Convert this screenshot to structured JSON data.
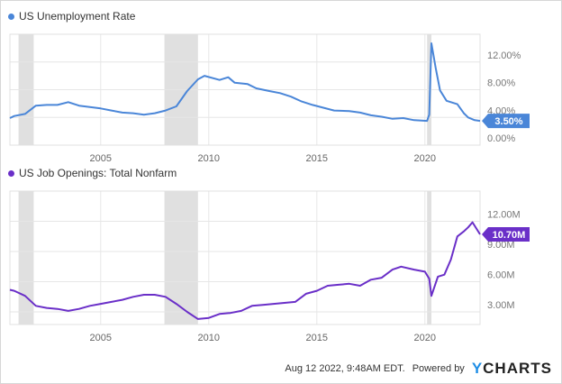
{
  "chart_data": [
    {
      "type": "line",
      "title": "US Unemployment Rate",
      "color": "#4a86d8",
      "xlim": [
        2000.8,
        2022.55
      ],
      "ylim": [
        0,
        16
      ],
      "x_ticks": [
        2005,
        2010,
        2015,
        2020
      ],
      "x_tick_labels": [
        "2005",
        "2010",
        "2015",
        "2020"
      ],
      "y_ticks": [
        0,
        4,
        8,
        12
      ],
      "y_tick_labels": [
        "0.00%",
        "4.00%",
        "8.00%",
        "12.00%"
      ],
      "last_value_label": "3.50%",
      "last_value": 3.5,
      "recessions": [
        [
          2001.2,
          2001.9
        ],
        [
          2007.95,
          2009.5
        ],
        [
          2020.1,
          2020.3
        ]
      ],
      "x": [
        2000.8,
        2001.0,
        2001.5,
        2002.0,
        2002.5,
        2003.0,
        2003.5,
        2004.0,
        2004.5,
        2005.0,
        2005.5,
        2006.0,
        2006.5,
        2007.0,
        2007.5,
        2008.0,
        2008.5,
        2009.0,
        2009.5,
        2009.8,
        2010.5,
        2010.9,
        2011.2,
        2011.8,
        2012.2,
        2012.8,
        2013.3,
        2013.8,
        2014.3,
        2014.8,
        2015.3,
        2015.8,
        2016.5,
        2017.0,
        2017.5,
        2018.0,
        2018.5,
        2019.0,
        2019.5,
        2020.1,
        2020.2,
        2020.3,
        2020.5,
        2020.7,
        2021.0,
        2021.5,
        2021.8,
        2022.0,
        2022.3,
        2022.55
      ],
      "y": [
        3.9,
        4.2,
        4.5,
        5.7,
        5.8,
        5.8,
        6.2,
        5.7,
        5.5,
        5.3,
        5.0,
        4.7,
        4.6,
        4.4,
        4.6,
        5.0,
        5.6,
        7.8,
        9.5,
        10.0,
        9.4,
        9.8,
        9.0,
        8.8,
        8.2,
        7.8,
        7.5,
        7.0,
        6.3,
        5.8,
        5.4,
        5.0,
        4.9,
        4.7,
        4.3,
        4.1,
        3.8,
        3.9,
        3.6,
        3.5,
        4.4,
        14.7,
        11.1,
        7.9,
        6.4,
        5.9,
        4.6,
        4.0,
        3.6,
        3.5
      ]
    },
    {
      "type": "line",
      "title": "US Job Openings: Total Nonfarm",
      "color": "#6a2fc8",
      "xlim": [
        2000.8,
        2022.55
      ],
      "ylim": [
        1.75,
        15
      ],
      "x_ticks": [
        2005,
        2010,
        2015,
        2020
      ],
      "x_tick_labels": [
        "2005",
        "2010",
        "2015",
        "2020"
      ],
      "y_ticks": [
        3,
        6,
        9,
        12
      ],
      "y_tick_labels": [
        "3.00M",
        "6.00M",
        "9.00M",
        "12.00M"
      ],
      "last_value_label": "10.70M",
      "last_value": 10.7,
      "recessions": [
        [
          2001.2,
          2001.9
        ],
        [
          2007.95,
          2009.5
        ],
        [
          2020.1,
          2020.3
        ]
      ],
      "x": [
        2000.8,
        2001.0,
        2001.5,
        2002.0,
        2002.5,
        2003.0,
        2003.5,
        2004.0,
        2004.5,
        2005.0,
        2005.5,
        2006.0,
        2006.5,
        2007.0,
        2007.5,
        2008.0,
        2008.5,
        2009.0,
        2009.5,
        2010.0,
        2010.5,
        2011.0,
        2011.5,
        2012.0,
        2012.5,
        2013.0,
        2013.5,
        2014.0,
        2014.5,
        2015.0,
        2015.5,
        2016.0,
        2016.5,
        2017.0,
        2017.5,
        2018.0,
        2018.5,
        2018.9,
        2019.5,
        2020.0,
        2020.2,
        2020.3,
        2020.6,
        2020.9,
        2021.2,
        2021.5,
        2021.8,
        2022.0,
        2022.2,
        2022.55
      ],
      "y": [
        5.2,
        5.1,
        4.6,
        3.6,
        3.4,
        3.3,
        3.1,
        3.3,
        3.6,
        3.8,
        4.0,
        4.2,
        4.5,
        4.7,
        4.7,
        4.5,
        3.8,
        3.0,
        2.3,
        2.4,
        2.8,
        2.9,
        3.1,
        3.6,
        3.7,
        3.8,
        3.9,
        4.0,
        4.8,
        5.1,
        5.6,
        5.7,
        5.8,
        5.6,
        6.2,
        6.4,
        7.2,
        7.5,
        7.2,
        7.0,
        6.3,
        4.6,
        6.5,
        6.7,
        8.2,
        10.5,
        11.0,
        11.4,
        11.9,
        10.7
      ]
    }
  ],
  "footer": {
    "timestamp": "Aug 12 2022, 9:48AM EDT.",
    "powered_by": "Powered by",
    "brand_y": "Y",
    "brand_rest": "CHARTS"
  }
}
